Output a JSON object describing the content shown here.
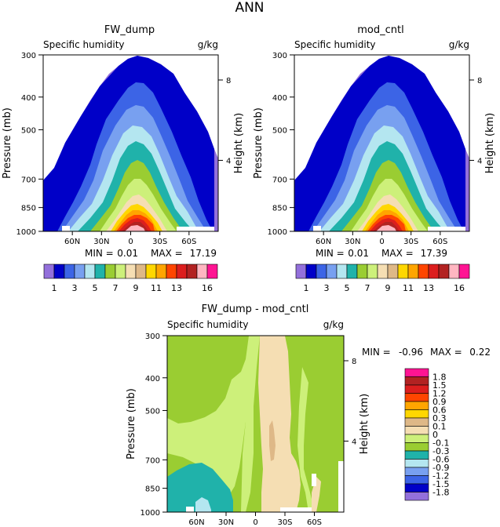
{
  "figure_title": "ANN",
  "chart_data": [
    {
      "type": "contour",
      "title": "FW_dump",
      "subtitle_left": "Specific humidity",
      "subtitle_right": "g/kg",
      "ylabel": "Pressure (mb)",
      "ylabel_right": "Height (km)",
      "y_ticks": [
        "300",
        "400",
        "500",
        "700",
        "850",
        "1000"
      ],
      "y_ticks_right": [
        "8",
        "4"
      ],
      "x_ticks": [
        "60N",
        "30N",
        "0",
        "30S",
        "60S"
      ],
      "min_label": "MIN =",
      "min": "0.01",
      "max_label": "MAX =",
      "max": "17.19"
    },
    {
      "type": "contour",
      "title": "mod_cntl",
      "subtitle_left": "Specific humidity",
      "subtitle_right": "g/kg",
      "ylabel": "Pressure (mb)",
      "ylabel_right": "Height (km)",
      "y_ticks": [
        "300",
        "400",
        "500",
        "700",
        "850",
        "1000"
      ],
      "y_ticks_right": [
        "8",
        "4"
      ],
      "x_ticks": [
        "60N",
        "30N",
        "0",
        "30S",
        "60S"
      ],
      "min_label": "MIN =",
      "min": "0.01",
      "max_label": "MAX =",
      "max": "17.39"
    },
    {
      "type": "contour",
      "title": "FW_dump - mod_cntl",
      "subtitle_left": "Specific humidity",
      "subtitle_right": "g/kg",
      "ylabel": "Pressure (mb)",
      "ylabel_right": "Height (km)",
      "y_ticks": [
        "300",
        "400",
        "500",
        "700",
        "850",
        "1000"
      ],
      "y_ticks_right": [
        "8",
        "4"
      ],
      "x_ticks": [
        "60N",
        "30N",
        "0",
        "30S",
        "60S"
      ],
      "min_label": "MIN =",
      "min": "-0.96",
      "max_label": "MAX =",
      "max": "0.22"
    }
  ],
  "colorbar_top": {
    "colors": [
      "#9370db",
      "#0000c8",
      "#3c64e6",
      "#78a0f0",
      "#b4e6f0",
      "#20b2aa",
      "#9acd32",
      "#cdf07a",
      "#f5deb3",
      "#deb887",
      "#ffd700",
      "#ffa500",
      "#ff4500",
      "#dc1e1e",
      "#b22222",
      "#ffb6c1",
      "#ff1493"
    ],
    "labels": [
      "1",
      "3",
      "5",
      "7",
      "9",
      "11",
      "13",
      "16"
    ]
  },
  "colorbar_diff": {
    "colors": [
      "#9370db",
      "#0000c8",
      "#3c64e6",
      "#78a0f0",
      "#b4e6f0",
      "#20b2aa",
      "#9acd32",
      "#cdf07a",
      "#f5deb3",
      "#deb887",
      "#ffd700",
      "#ffa500",
      "#ff4500",
      "#dc1e1e",
      "#b22222",
      "#ff1493"
    ],
    "labels": [
      "1.8",
      "1.5",
      "1.2",
      "0.9",
      "0.6",
      "0.3",
      "0.1",
      "0",
      "-0.1",
      "-0.3",
      "-0.6",
      "-0.9",
      "-1.2",
      "-1.5",
      "-1.8"
    ]
  }
}
